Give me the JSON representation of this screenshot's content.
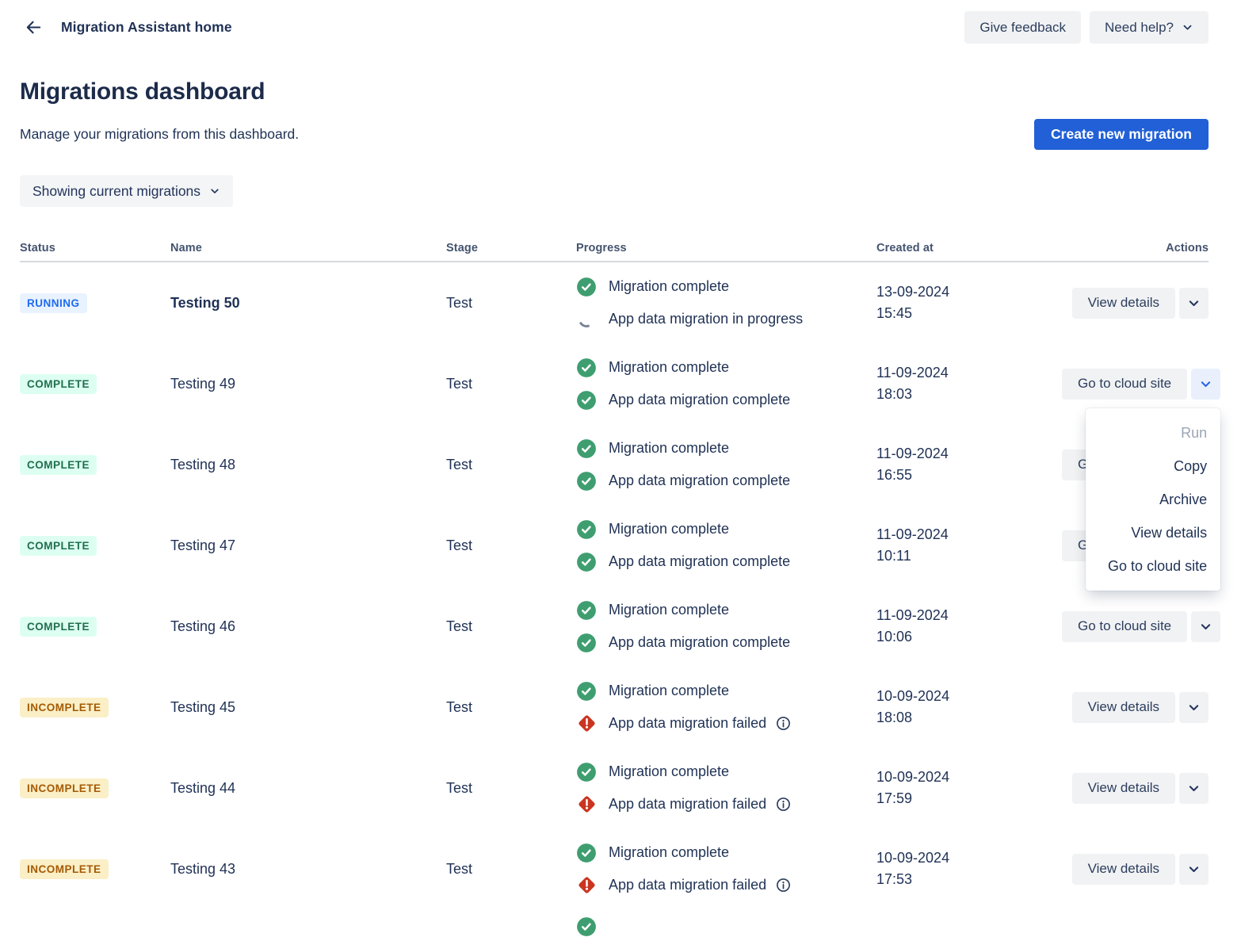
{
  "topbar": {
    "back_label": "Migration Assistant home",
    "give_feedback": "Give feedback",
    "need_help": "Need help?"
  },
  "page": {
    "title": "Migrations dashboard",
    "subtitle": "Manage your migrations from this dashboard.",
    "create_button": "Create new migration",
    "filter_button": "Showing current migrations"
  },
  "table": {
    "columns": [
      "Status",
      "Name",
      "Stage",
      "Progress",
      "Created at",
      "Actions"
    ],
    "rows": [
      {
        "status": "RUNNING",
        "status_type": "running",
        "name": "Testing 50",
        "name_bold": true,
        "stage": "Test",
        "progress": [
          {
            "icon": "success",
            "text": "Migration complete"
          },
          {
            "icon": "spinner",
            "text": "App data migration in progress"
          }
        ],
        "created_date": "13-09-2024",
        "created_time": "15:45",
        "action": "View details",
        "menu_open": false
      },
      {
        "status": "COMPLETE",
        "status_type": "complete",
        "name": "Testing 49",
        "name_bold": false,
        "stage": "Test",
        "progress": [
          {
            "icon": "success",
            "text": "Migration complete"
          },
          {
            "icon": "success",
            "text": "App data migration complete"
          }
        ],
        "created_date": "11-09-2024",
        "created_time": "18:03",
        "action": "Go to cloud site",
        "menu_open": true
      },
      {
        "status": "COMPLETE",
        "status_type": "complete",
        "name": "Testing 48",
        "name_bold": false,
        "stage": "Test",
        "progress": [
          {
            "icon": "success",
            "text": "Migration complete"
          },
          {
            "icon": "success",
            "text": "App data migration complete"
          }
        ],
        "created_date": "11-09-2024",
        "created_time": "16:55",
        "action": "Go to cloud site",
        "menu_open": false
      },
      {
        "status": "COMPLETE",
        "status_type": "complete",
        "name": "Testing 47",
        "name_bold": false,
        "stage": "Test",
        "progress": [
          {
            "icon": "success",
            "text": "Migration complete"
          },
          {
            "icon": "success",
            "text": "App data migration complete"
          }
        ],
        "created_date": "11-09-2024",
        "created_time": "10:11",
        "action": "Go to cloud site",
        "menu_open": false
      },
      {
        "status": "COMPLETE",
        "status_type": "complete",
        "name": "Testing 46",
        "name_bold": false,
        "stage": "Test",
        "progress": [
          {
            "icon": "success",
            "text": "Migration complete"
          },
          {
            "icon": "success",
            "text": "App data migration complete"
          }
        ],
        "created_date": "11-09-2024",
        "created_time": "10:06",
        "action": "Go to cloud site",
        "menu_open": false
      },
      {
        "status": "INCOMPLETE",
        "status_type": "incomplete",
        "name": "Testing 45",
        "name_bold": false,
        "stage": "Test",
        "progress": [
          {
            "icon": "success",
            "text": "Migration complete"
          },
          {
            "icon": "error",
            "text": "App data migration failed",
            "info": true
          }
        ],
        "created_date": "10-09-2024",
        "created_time": "18:08",
        "action": "View details",
        "menu_open": false
      },
      {
        "status": "INCOMPLETE",
        "status_type": "incomplete",
        "name": "Testing 44",
        "name_bold": false,
        "stage": "Test",
        "progress": [
          {
            "icon": "success",
            "text": "Migration complete"
          },
          {
            "icon": "error",
            "text": "App data migration failed",
            "info": true
          }
        ],
        "created_date": "10-09-2024",
        "created_time": "17:59",
        "action": "View details",
        "menu_open": false
      },
      {
        "status": "INCOMPLETE",
        "status_type": "incomplete",
        "name": "Testing 43",
        "name_bold": false,
        "stage": "Test",
        "progress": [
          {
            "icon": "success",
            "text": "Migration complete"
          },
          {
            "icon": "error",
            "text": "App data migration failed",
            "info": true
          }
        ],
        "created_date": "10-09-2024",
        "created_time": "17:53",
        "action": "View details",
        "menu_open": false
      }
    ]
  },
  "action_menu": {
    "items": [
      {
        "label": "Run",
        "disabled": true
      },
      {
        "label": "Copy",
        "disabled": false
      },
      {
        "label": "Archive",
        "disabled": false
      },
      {
        "label": "View details",
        "disabled": false
      },
      {
        "label": "Go to cloud site",
        "disabled": false
      }
    ]
  },
  "colors": {
    "accent_blue": "#2160d6",
    "running_bg": "#e9f2ff",
    "running_text": "#1d6bf0",
    "complete_bg": "#dcfff1",
    "complete_text": "#216e4e",
    "incomplete_bg": "#faefc6",
    "incomplete_text": "#a45a06",
    "success_green": "#3f9e70",
    "error_red": "#ca3521",
    "text_navy": "#1f3155",
    "header_gray": "#44546f",
    "button_gray": "#f1f2f4"
  }
}
